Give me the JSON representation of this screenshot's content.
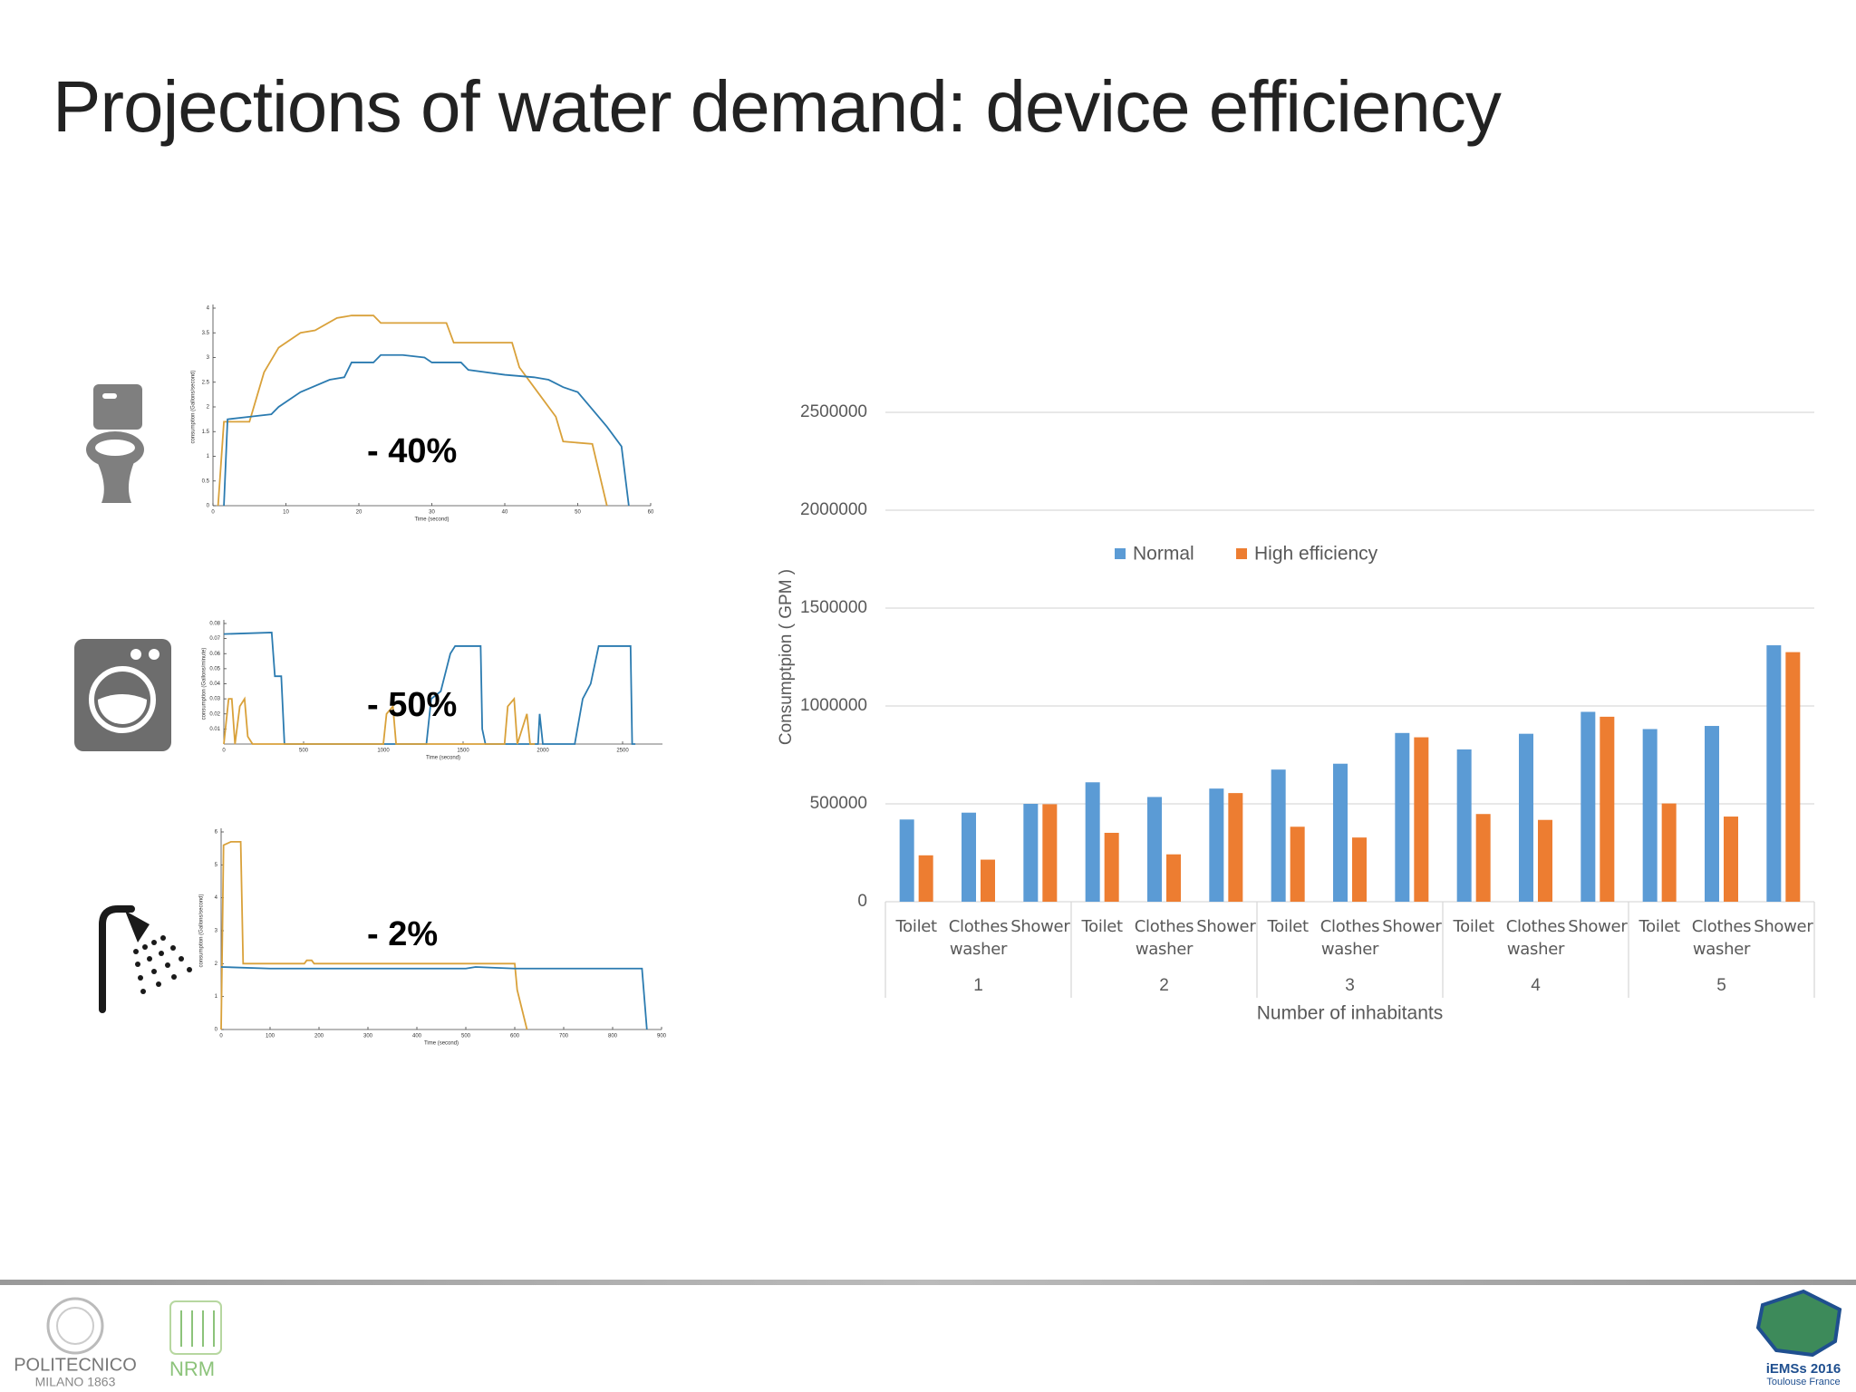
{
  "title": "Projections of water demand: device efficiency",
  "chart_data": [
    {
      "type": "bar",
      "categories": [
        "Toilet",
        "Clothes washer",
        "Shower",
        "Toilet",
        "Clothes washer",
        "Shower",
        "Toilet",
        "Clothes washer",
        "Shower",
        "Toilet",
        "Clothes washer",
        "Shower",
        "Toilet",
        "Clothes washer",
        "Shower"
      ],
      "groups": [
        "1",
        "2",
        "3",
        "4",
        "5"
      ],
      "x_label": "Number of inhabitants",
      "y_label": "Consumptpion ( GPM )",
      "series": [
        {
          "name": "Normal",
          "color": "#5b9bd5",
          "values": [
            420000,
            455000,
            500000,
            610000,
            535000,
            578000,
            675000,
            705000,
            862000,
            778000,
            858000,
            970000,
            882000,
            898000,
            1310000
          ]
        },
        {
          "name": "High efficiency",
          "color": "#ed7d31",
          "values": [
            237000,
            215000,
            498000,
            352000,
            242000,
            555000,
            383000,
            328000,
            840000,
            448000,
            418000,
            945000,
            502000,
            435000,
            1275000
          ]
        }
      ],
      "ylim": [
        0,
        2500000
      ],
      "yticks": [
        0,
        500000,
        1000000,
        1500000,
        2000000,
        2500000
      ],
      "grid": true,
      "legend": "top"
    },
    {
      "type": "line",
      "annotation": "- 40%",
      "x_label": "Time (second)",
      "y_label": "consumption (Gallons/second)",
      "xlim": [
        0,
        60
      ],
      "ylim": [
        0,
        4
      ],
      "xticks": [
        0,
        10,
        20,
        30,
        40,
        50,
        60
      ],
      "yticks": [
        0,
        0.5,
        1,
        1.5,
        2,
        2.5,
        3,
        3.5,
        4
      ],
      "series": [
        {
          "color": "#d9a13a",
          "x": [
            0.7,
            1.5,
            5,
            6,
            7,
            9,
            12,
            14,
            17,
            19,
            22,
            23,
            32,
            33,
            41,
            42,
            44,
            47,
            48,
            52,
            54
          ],
          "values": [
            0,
            1.7,
            1.7,
            2.2,
            2.7,
            3.2,
            3.5,
            3.55,
            3.8,
            3.85,
            3.85,
            3.7,
            3.7,
            3.3,
            3.3,
            2.8,
            2.4,
            1.8,
            1.3,
            1.25,
            0
          ]
        },
        {
          "color": "#2b7bb0",
          "x": [
            1.5,
            2,
            5,
            8,
            9,
            12,
            16,
            18,
            19,
            22,
            23,
            26,
            29,
            30,
            34,
            35,
            40,
            44,
            46,
            48,
            50,
            52,
            54,
            56,
            57
          ],
          "values": [
            0,
            1.75,
            1.8,
            1.85,
            2,
            2.3,
            2.55,
            2.6,
            2.9,
            2.9,
            3.05,
            3.05,
            3,
            2.9,
            2.9,
            2.75,
            2.65,
            2.6,
            2.55,
            2.4,
            2.3,
            1.95,
            1.6,
            1.2,
            0
          ]
        }
      ]
    },
    {
      "type": "line",
      "annotation": "- 50%",
      "x_label": "Time (second)",
      "y_label": "consumption (Gallons/minute)",
      "xlim": [
        0,
        2750
      ],
      "ylim": [
        0,
        0.08
      ],
      "xticks": [
        0,
        500,
        1000,
        1500,
        2000,
        2500
      ],
      "yticks": [
        0.01,
        0.02,
        0.03,
        0.04,
        0.05,
        0.06,
        0.07,
        0.08
      ],
      "series": [
        {
          "color": "#2b7bb0",
          "x": [
            0,
            300,
            320,
            360,
            380,
            1270,
            1300,
            1360,
            1420,
            1450,
            1610,
            1620,
            1640,
            1970,
            1980,
            2000,
            2200,
            2250,
            2300,
            2350,
            2550,
            2560,
            2580
          ],
          "values": [
            0.073,
            0.074,
            0.045,
            0.045,
            0,
            0,
            0.03,
            0.035,
            0.06,
            0.065,
            0.065,
            0.01,
            0,
            0,
            0.02,
            0,
            0,
            0.03,
            0.04,
            0.065,
            0.065,
            0,
            0
          ]
        },
        {
          "color": "#d9a13a",
          "x": [
            0,
            30,
            50,
            70,
            100,
            130,
            150,
            180,
            1000,
            1020,
            1060,
            1080,
            1760,
            1780,
            1820,
            1840,
            1900,
            1920,
            1950
          ],
          "values": [
            0,
            0.03,
            0.03,
            0,
            0.025,
            0.03,
            0.005,
            0,
            0,
            0.02,
            0.025,
            0,
            0,
            0.025,
            0.03,
            0,
            0.02,
            0,
            0
          ]
        }
      ]
    },
    {
      "type": "line",
      "annotation": "- 2%",
      "x_label": "Time (second)",
      "y_label": "consumption (Gallons/second)",
      "xlim": [
        0,
        900
      ],
      "ylim": [
        0,
        6
      ],
      "xticks": [
        0,
        100,
        200,
        300,
        400,
        500,
        600,
        700,
        800,
        900
      ],
      "yticks": [
        0,
        1,
        2,
        3,
        4,
        5,
        6
      ],
      "series": [
        {
          "color": "#d9a13a",
          "x": [
            0,
            5,
            20,
            40,
            45,
            100,
            170,
            175,
            185,
            190,
            600,
            605,
            625
          ],
          "values": [
            0,
            5.6,
            5.7,
            5.7,
            2,
            2,
            2,
            2.1,
            2.1,
            2,
            2,
            1.2,
            0
          ]
        },
        {
          "color": "#2b7bb0",
          "x": [
            0,
            100,
            500,
            520,
            600,
            860,
            870
          ],
          "values": [
            1.9,
            1.85,
            1.85,
            1.9,
            1.85,
            1.85,
            0
          ]
        }
      ]
    }
  ],
  "footer": {
    "left_logo": "POLITECNICO",
    "left_logo_sub": "MILANO 1863",
    "middle_logo": "NRM",
    "right_logo": "iEMSs 2016",
    "right_logo_sub": "Toulouse France"
  }
}
